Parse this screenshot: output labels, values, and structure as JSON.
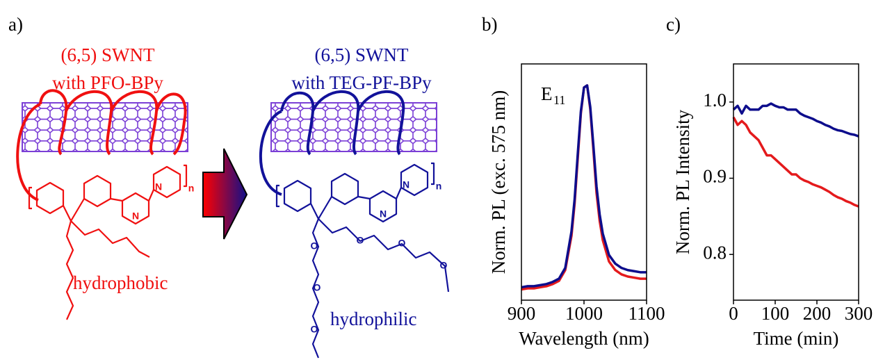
{
  "panel_labels": {
    "a": "a)",
    "b": "b)",
    "c": "c)"
  },
  "diagram": {
    "before": {
      "line1": "(6,5) SWNT",
      "line2": "with PFO-BPy",
      "side_chain": "hydrophobic"
    },
    "after": {
      "line1": "(6,5) SWNT",
      "line2": "with TEG-PF-BPy",
      "side_chain": "hydrophilic"
    },
    "atoms": {
      "nitrogen": "N",
      "oxygen": "O",
      "repeat": "n"
    }
  },
  "chart_data": [
    {
      "type": "line",
      "ylabel": "Norm. PL (exc. 575 nm)",
      "xlabel": "Wavelength (nm)",
      "annotation": {
        "text": "E",
        "subscript": "11"
      },
      "x": [
        900,
        910,
        920,
        930,
        940,
        950,
        960,
        970,
        980,
        985,
        990,
        995,
        1000,
        1005,
        1010,
        1015,
        1020,
        1025,
        1030,
        1040,
        1050,
        1060,
        1070,
        1080,
        1090,
        1100
      ],
      "series": [
        {
          "color": "#e41a1c",
          "values": [
            0.05,
            0.055,
            0.055,
            0.06,
            0.065,
            0.075,
            0.09,
            0.14,
            0.3,
            0.45,
            0.66,
            0.87,
            0.99,
            1.0,
            0.89,
            0.7,
            0.5,
            0.37,
            0.28,
            0.18,
            0.14,
            0.12,
            0.11,
            0.105,
            0.1,
            0.1
          ]
        },
        {
          "color": "#0d0d8c",
          "values": [
            0.06,
            0.065,
            0.065,
            0.07,
            0.075,
            0.085,
            0.1,
            0.15,
            0.32,
            0.47,
            0.68,
            0.88,
            0.99,
            1.0,
            0.9,
            0.72,
            0.53,
            0.4,
            0.31,
            0.21,
            0.17,
            0.15,
            0.14,
            0.135,
            0.13,
            0.13
          ]
        }
      ],
      "xlim": [
        900,
        1100
      ],
      "xticks": [
        900,
        1000,
        1100
      ],
      "ylim": [
        0,
        1.1
      ]
    },
    {
      "type": "line",
      "ylabel": "Norm. PL Intensity",
      "xlabel": "Time (min)",
      "x": [
        0,
        10,
        20,
        30,
        40,
        50,
        60,
        70,
        80,
        90,
        100,
        110,
        120,
        130,
        140,
        150,
        160,
        170,
        180,
        190,
        200,
        210,
        220,
        230,
        240,
        250,
        260,
        270,
        280,
        290,
        300
      ],
      "series": [
        {
          "color": "#e41a1c",
          "values": [
            0.98,
            0.97,
            0.975,
            0.97,
            0.96,
            0.955,
            0.95,
            0.94,
            0.93,
            0.93,
            0.925,
            0.92,
            0.915,
            0.91,
            0.905,
            0.905,
            0.9,
            0.897,
            0.895,
            0.892,
            0.89,
            0.888,
            0.885,
            0.882,
            0.878,
            0.875,
            0.873,
            0.87,
            0.868,
            0.865,
            0.863
          ]
        },
        {
          "color": "#0d0d8c",
          "values": [
            0.99,
            0.995,
            0.985,
            0.995,
            0.99,
            0.99,
            0.99,
            0.995,
            0.995,
            0.998,
            0.995,
            0.993,
            0.993,
            0.99,
            0.99,
            0.99,
            0.985,
            0.982,
            0.98,
            0.978,
            0.975,
            0.973,
            0.97,
            0.968,
            0.965,
            0.963,
            0.962,
            0.96,
            0.958,
            0.957,
            0.955
          ]
        }
      ],
      "xlim": [
        0,
        300
      ],
      "xticks": [
        0,
        100,
        200,
        300
      ],
      "ylim": [
        0.74,
        1.05
      ],
      "yticks": [
        {
          "value": 0.8,
          "label": "0.8"
        },
        {
          "value": 0.9,
          "label": "0.9"
        },
        {
          "value": 1.0,
          "label": "1.0"
        }
      ]
    }
  ]
}
